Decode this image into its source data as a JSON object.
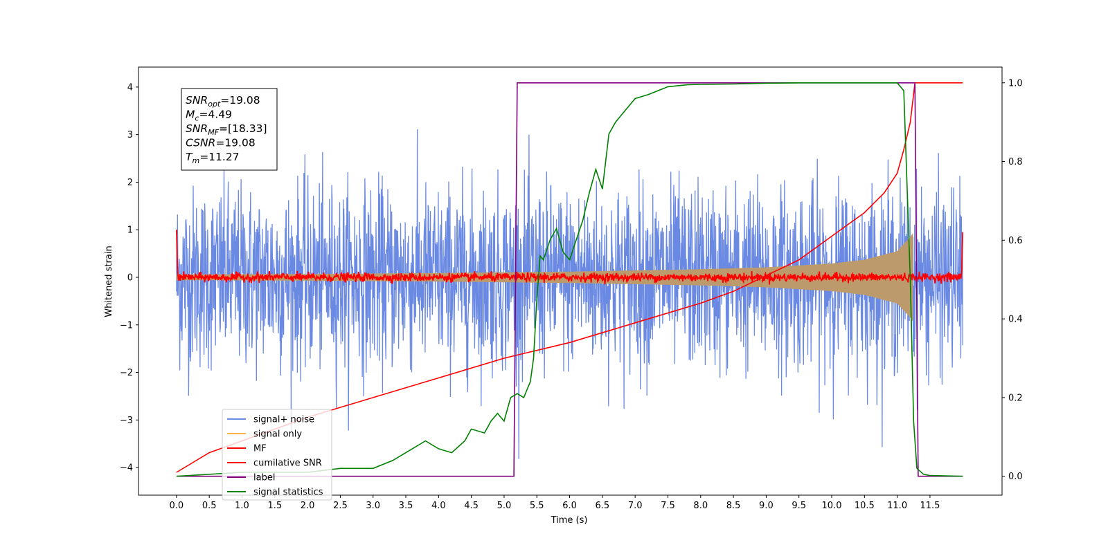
{
  "chart_data": {
    "type": "line",
    "xlabel": "Time (s)",
    "ylabel": "Whitened strain",
    "xlim": [
      -0.58,
      12.6
    ],
    "ylim": [
      -4.58,
      4.42
    ],
    "y2lim": [
      -0.048,
      1.04
    ],
    "xticks": [
      0.0,
      0.5,
      1.0,
      1.5,
      2.0,
      2.5,
      3.0,
      3.5,
      4.0,
      4.5,
      5.0,
      5.5,
      6.0,
      6.5,
      7.0,
      7.5,
      8.0,
      8.5,
      9.0,
      9.5,
      10.0,
      10.5,
      11.0,
      11.5
    ],
    "xtick_labels": [
      "0.0",
      "0.5",
      "1.0",
      "1.5",
      "2.0",
      "2.5",
      "3.0",
      "3.5",
      "4.0",
      "4.5",
      "5.0",
      "5.5",
      "6.0",
      "6.5",
      "7.0",
      "7.5",
      "8.0",
      "8.5",
      "9.0",
      "9.5",
      "10.0",
      "10.5",
      "11.0",
      "11.5"
    ],
    "yticks": [
      -4,
      -3,
      -2,
      -1,
      0,
      1,
      2,
      3,
      4
    ],
    "ytick_labels": [
      "−4",
      "−3",
      "−2",
      "−1",
      "0",
      "1",
      "2",
      "3",
      "4"
    ],
    "y2ticks": [
      0.0,
      0.2,
      0.4,
      0.6,
      0.8,
      1.0
    ],
    "y2tick_labels": [
      "0.0",
      "0.2",
      "0.4",
      "0.6",
      "0.8",
      "1.0"
    ],
    "grid": false,
    "legend_position": "lower-left",
    "series": [
      {
        "name": "signal+ noise",
        "color": "#6a89e3",
        "axis": "left",
        "description": "whitened noise, amplitude roughly +/-2.5 with peaks to about +/-4.1, from 0.0 to 12.0 s"
      },
      {
        "name": "signal only",
        "color": "#ffb347",
        "axis": "left",
        "envelope": {
          "t": [
            0.0,
            2.0,
            4.0,
            6.0,
            8.0,
            9.0,
            10.0,
            10.5,
            11.0,
            11.2,
            11.25
          ],
          "amplitude": [
            0.06,
            0.07,
            0.09,
            0.12,
            0.17,
            0.21,
            0.29,
            0.37,
            0.55,
            0.85,
            0.95
          ]
        }
      },
      {
        "name": "MF",
        "color": "#ff0000",
        "axis": "left",
        "description": "matched filter output, near 0 with amplitude about 0.1 from 0.0 to 12.0 s, 1.0 at the edges"
      },
      {
        "name": "cumilative SNR",
        "color": "#ff0000",
        "axis": "right",
        "x": [
          0.0,
          0.5,
          1.0,
          2.0,
          3.0,
          4.0,
          5.0,
          6.0,
          7.0,
          8.0,
          8.5,
          9.0,
          9.5,
          10.0,
          10.5,
          10.8,
          11.0,
          11.1,
          11.2,
          11.27,
          12.0
        ],
        "y": [
          0.01,
          0.06,
          0.09,
          0.15,
          0.2,
          0.25,
          0.3,
          0.34,
          0.39,
          0.44,
          0.47,
          0.51,
          0.55,
          0.61,
          0.67,
          0.72,
          0.77,
          0.83,
          0.9,
          1.0,
          1.0
        ]
      },
      {
        "name": "label",
        "color": "#800080",
        "axis": "right",
        "x": [
          0.0,
          5.15,
          5.2,
          11.27,
          11.32,
          12.0
        ],
        "y": [
          0.0,
          0.0,
          1.0,
          1.0,
          0.0,
          0.0
        ]
      },
      {
        "name": "signal statistics",
        "color": "#008000",
        "axis": "right",
        "x": [
          0.0,
          1.0,
          2.0,
          2.5,
          3.0,
          3.3,
          3.5,
          3.6,
          3.8,
          4.0,
          4.2,
          4.4,
          4.5,
          4.7,
          4.8,
          4.9,
          5.0,
          5.1,
          5.2,
          5.3,
          5.4,
          5.45,
          5.5,
          5.55,
          5.6,
          5.7,
          5.8,
          5.9,
          6.0,
          6.1,
          6.2,
          6.3,
          6.4,
          6.5,
          6.6,
          6.7,
          6.8,
          6.9,
          7.0,
          7.2,
          7.5,
          7.8,
          8.0,
          8.5,
          9.0,
          9.5,
          10.0,
          10.5,
          11.0,
          11.1,
          11.2,
          11.25,
          11.3,
          11.4,
          11.5,
          12.0
        ],
        "y": [
          0.0,
          0.01,
          0.01,
          0.02,
          0.02,
          0.04,
          0.06,
          0.07,
          0.09,
          0.07,
          0.06,
          0.09,
          0.12,
          0.11,
          0.14,
          0.16,
          0.14,
          0.2,
          0.21,
          0.2,
          0.24,
          0.3,
          0.45,
          0.56,
          0.55,
          0.6,
          0.63,
          0.57,
          0.55,
          0.6,
          0.65,
          0.72,
          0.78,
          0.73,
          0.87,
          0.9,
          0.92,
          0.94,
          0.96,
          0.97,
          0.99,
          0.995,
          0.996,
          0.997,
          0.999,
          1.0,
          1.0,
          1.0,
          1.0,
          0.98,
          0.5,
          0.14,
          0.02,
          0.005,
          0.002,
          0.0
        ]
      }
    ],
    "info_box": [
      {
        "var": "SNR",
        "sub": "opt",
        "value": "=19.08"
      },
      {
        "var": "M",
        "sub": "c",
        "value": "=4.49"
      },
      {
        "var": "SNR",
        "sub": "MF",
        "value": "=[18.33]"
      },
      {
        "var": "CSNR",
        "sub": "",
        "value": "=19.08"
      },
      {
        "var": "T",
        "sub": "m",
        "value": "=11.27"
      }
    ]
  }
}
